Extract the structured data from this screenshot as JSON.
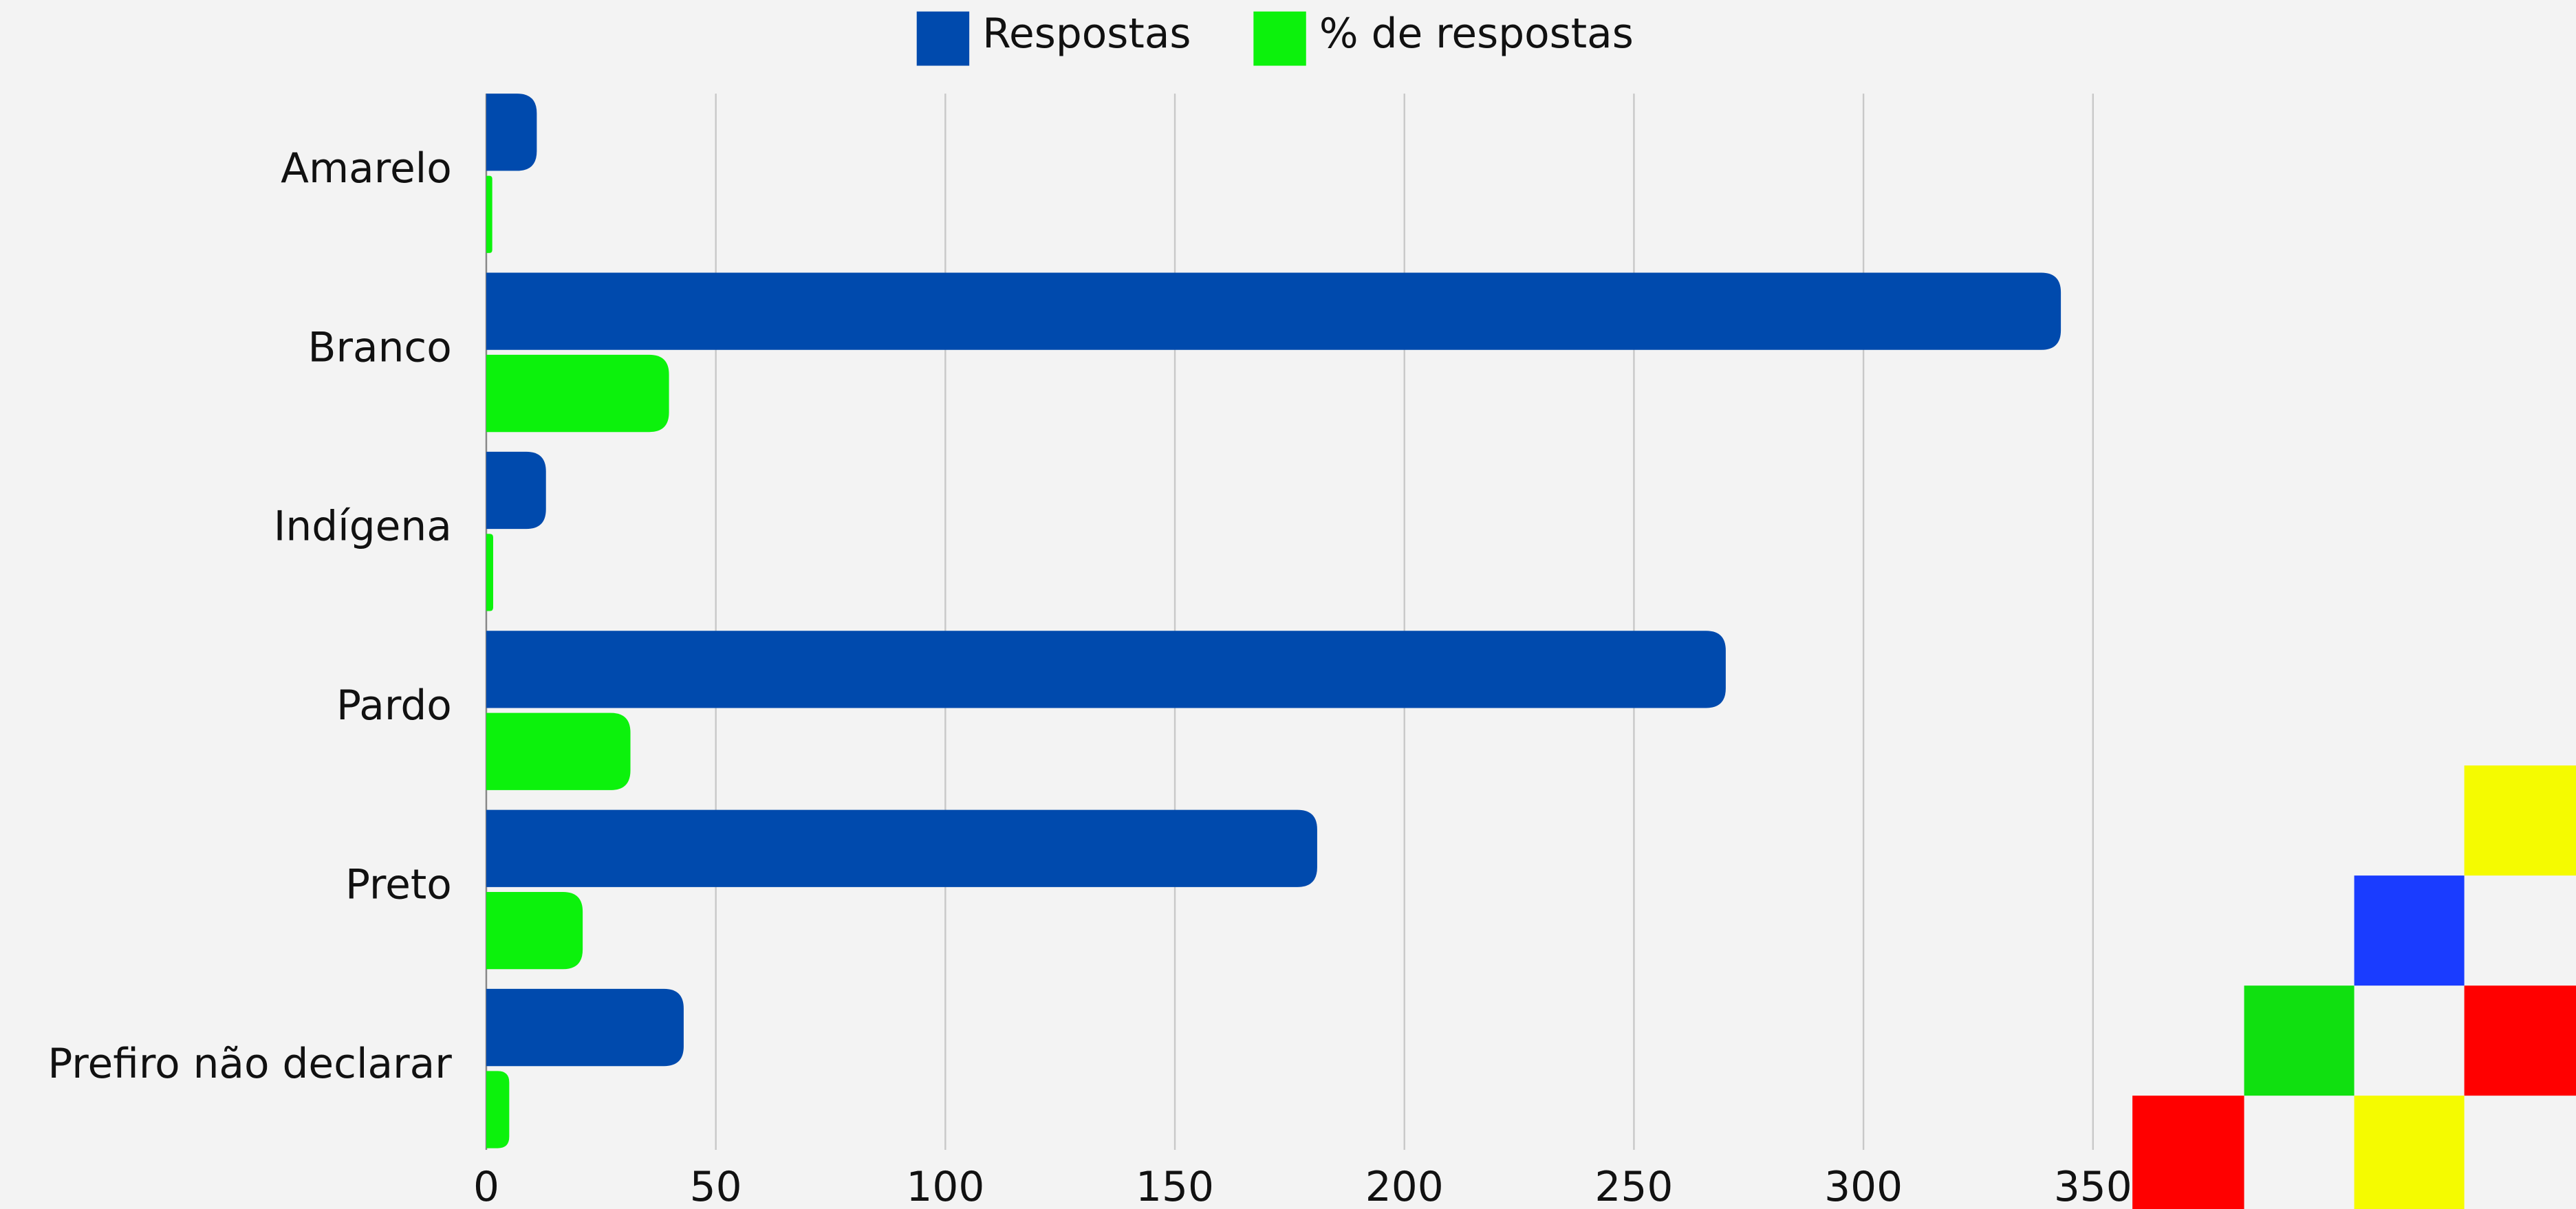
{
  "chart_data": {
    "type": "barh",
    "categories": [
      "Amarelo",
      "Branco",
      "Indígena",
      "Pardo",
      "Preto",
      "Prefiro não declarar"
    ],
    "series": [
      {
        "name": "Respostas",
        "color": "#004aad",
        "values": [
          11,
          343,
          13,
          270,
          181,
          43
        ]
      },
      {
        "name": "% de respostas",
        "color": "#0cf20c",
        "values": [
          1.3,
          39.8,
          1.5,
          31.4,
          21,
          5
        ]
      }
    ],
    "xlim": [
      0,
      350
    ],
    "xticks": [
      0,
      50,
      100,
      150,
      200,
      250,
      300,
      350
    ],
    "grid": true,
    "legend": "top"
  }
}
